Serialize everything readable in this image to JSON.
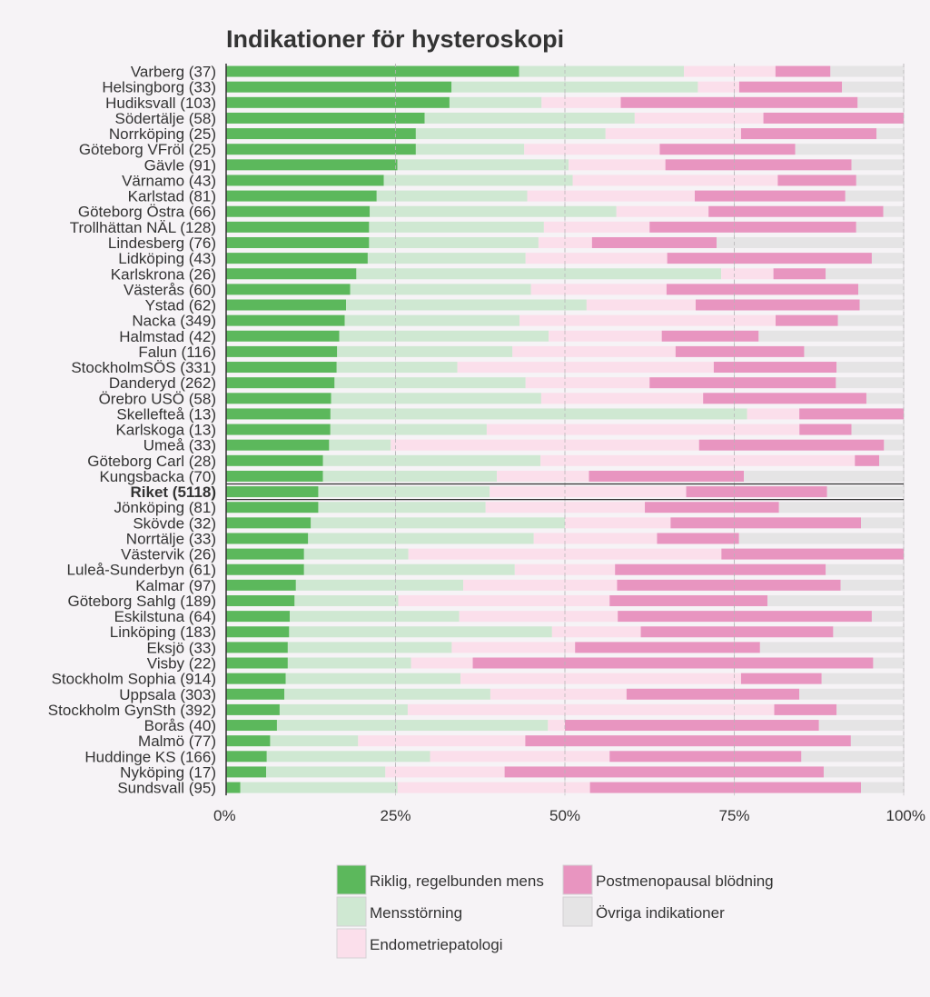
{
  "chart_data": {
    "type": "bar",
    "orientation": "horizontal",
    "stacked": true,
    "percent_scale": true,
    "title": "Indikationer för hysteroskopi",
    "xlabel": "",
    "ylabel": "",
    "xlim": [
      0,
      100
    ],
    "x_ticks": [
      "0%",
      "25%",
      "50%",
      "75%",
      "100%"
    ],
    "highlight_category": "Riket (5118)",
    "categories": [
      "Varberg (37)",
      "Helsingborg (33)",
      "Hudiksvall (103)",
      "Södertälje (58)",
      "Norrköping (25)",
      "Göteborg VFröl (25)",
      "Gävle (91)",
      "Värnamo (43)",
      "Karlstad (81)",
      "Göteborg Östra (66)",
      "Trollhättan NÄL (128)",
      "Lindesberg (76)",
      "Lidköping (43)",
      "Karlskrona (26)",
      "Västerås (60)",
      "Ystad (62)",
      "Nacka (349)",
      "Halmstad (42)",
      "Falun (116)",
      "StockholmSÖS (331)",
      "Danderyd (262)",
      "Örebro USÖ (58)",
      "Skellefteå (13)",
      "Karlskoga (13)",
      "Umeå (33)",
      "Göteborg Carl (28)",
      "Kungsbacka (70)",
      "Riket (5118)",
      "Jönköping (81)",
      "Skövde (32)",
      "Norrtälje (33)",
      "Västervik (26)",
      "Luleå-Sunderbyn (61)",
      "Kalmar (97)",
      "Göteborg Sahlg (189)",
      "Eskilstuna (64)",
      "Linköping (183)",
      "Eksjö (33)",
      "Visby (22)",
      "Stockholm Sophia (914)",
      "Uppsala (303)",
      "Stockholm GynSth (392)",
      "Borås (40)",
      "Malmö (77)",
      "Huddinge KS (166)",
      "Nyköping (17)",
      "Sundsvall (95)"
    ],
    "series": [
      {
        "name": "Riklig, regelbunden mens",
        "color": "#5cb85c",
        "values": [
          43.2,
          33.3,
          33.0,
          29.3,
          28.0,
          28.0,
          25.3,
          23.3,
          22.2,
          21.2,
          21.1,
          21.1,
          20.9,
          19.2,
          18.3,
          17.7,
          17.5,
          16.7,
          16.4,
          16.3,
          16.0,
          15.5,
          15.4,
          15.4,
          15.2,
          14.3,
          14.3,
          13.6,
          13.6,
          12.5,
          12.1,
          11.5,
          11.5,
          10.3,
          10.1,
          9.4,
          9.3,
          9.1,
          9.1,
          8.8,
          8.6,
          7.9,
          7.5,
          6.5,
          6.0,
          5.9,
          2.1
        ]
      },
      {
        "name": "Mensstörning",
        "color": "#cfe8d2",
        "values": [
          24.3,
          36.4,
          13.6,
          31.0,
          28.0,
          16.0,
          25.3,
          27.9,
          22.2,
          36.4,
          25.8,
          25.0,
          23.3,
          53.8,
          26.7,
          35.5,
          25.8,
          30.9,
          25.9,
          17.8,
          28.2,
          31.0,
          61.5,
          23.1,
          9.1,
          32.1,
          25.7,
          25.3,
          24.7,
          37.5,
          33.3,
          15.4,
          31.1,
          24.7,
          15.3,
          25.0,
          38.8,
          24.2,
          18.2,
          25.8,
          30.4,
          18.9,
          40.0,
          13.0,
          24.1,
          17.6,
          23.2
        ]
      },
      {
        "name": "Endometriepatologi",
        "color": "#fbdfeb",
        "values": [
          13.5,
          6.1,
          11.7,
          19.0,
          20.0,
          20.0,
          14.3,
          30.3,
          24.7,
          13.6,
          15.6,
          7.9,
          20.9,
          7.7,
          20.0,
          16.1,
          37.8,
          16.7,
          24.1,
          37.8,
          18.3,
          23.9,
          7.7,
          46.2,
          45.5,
          46.4,
          13.6,
          29.0,
          23.5,
          15.6,
          18.2,
          46.2,
          14.8,
          22.7,
          31.2,
          23.4,
          13.1,
          18.2,
          9.1,
          41.4,
          20.1,
          54.1,
          2.5,
          24.7,
          26.5,
          17.6,
          28.4
        ]
      },
      {
        "name": "Postmenopausal blödning",
        "color": "#e895c0",
        "values": [
          8.1,
          15.2,
          35.0,
          20.7,
          20.0,
          20.0,
          27.5,
          11.6,
          22.2,
          25.8,
          30.5,
          18.4,
          30.2,
          7.7,
          28.3,
          24.2,
          9.2,
          14.3,
          19.0,
          18.1,
          27.5,
          24.1,
          15.4,
          7.7,
          27.3,
          3.6,
          22.9,
          20.8,
          19.8,
          28.1,
          12.1,
          26.9,
          31.1,
          33.0,
          23.3,
          37.5,
          28.4,
          27.3,
          59.1,
          11.9,
          25.5,
          9.2,
          37.5,
          48.1,
          28.3,
          47.1,
          40.0
        ]
      },
      {
        "name": "Övriga indikationer",
        "color": "#e5e4e5",
        "values": [
          10.8,
          9.1,
          6.8,
          0.0,
          4.0,
          16.0,
          7.7,
          7.0,
          8.6,
          3.0,
          7.0,
          27.6,
          4.7,
          11.5,
          6.7,
          6.5,
          9.7,
          21.4,
          14.7,
          9.9,
          10.0,
          5.5,
          0.0,
          7.7,
          2.9,
          3.6,
          23.6,
          11.3,
          18.4,
          6.3,
          24.3,
          0.0,
          11.5,
          9.3,
          20.1,
          4.7,
          10.4,
          21.2,
          4.5,
          12.1,
          15.4,
          9.9,
          12.5,
          7.8,
          15.1,
          11.8,
          6.3
        ]
      }
    ],
    "legend": {
      "placement": "bottom",
      "entries": [
        {
          "label": "Riklig, regelbunden mens",
          "color": "#5cb85c"
        },
        {
          "label": "Postmenopausal blödning",
          "color": "#e895c0"
        },
        {
          "label": "Mensstörning",
          "color": "#cfe8d2"
        },
        {
          "label": "Övriga indikationer",
          "color": "#e5e4e5"
        },
        {
          "label": "Endometriepatologi",
          "color": "#fbdfeb"
        }
      ]
    }
  }
}
